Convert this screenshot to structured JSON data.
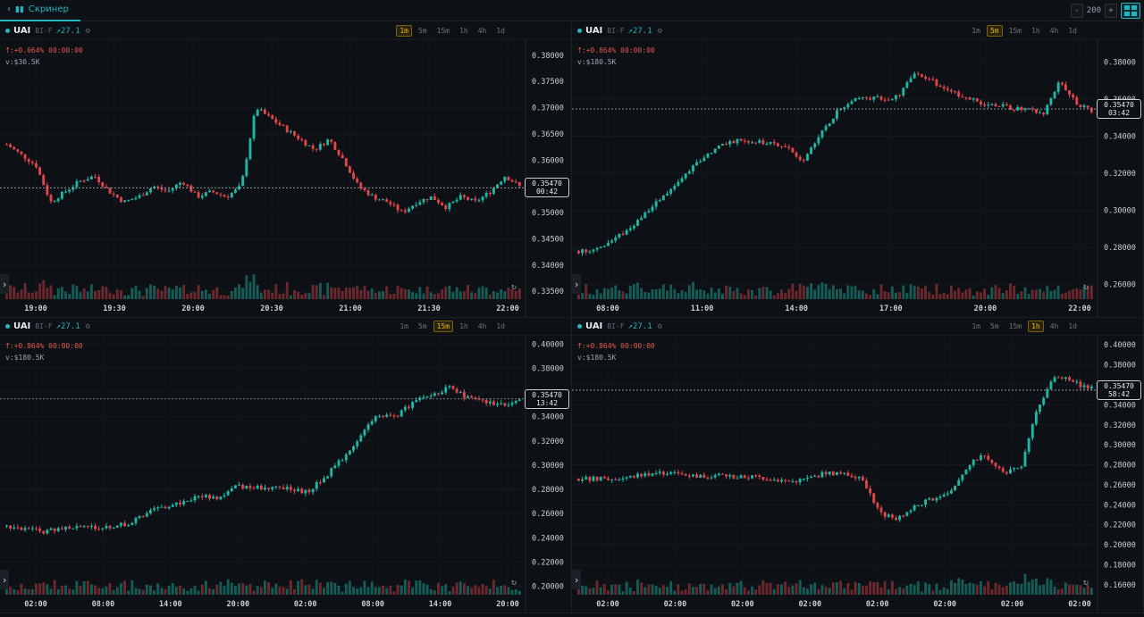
{
  "topbar": {
    "back_label": "Скринер",
    "zoom_minus": "-",
    "zoom_value": "200",
    "zoom_plus": "+"
  },
  "colors": {
    "up": "#1fb6a6",
    "down": "#e0454a",
    "accent": "#1fb6c1",
    "bg": "#0d1115"
  },
  "panels": [
    {
      "symbol": "UAI",
      "exchange": "BI-F",
      "change": "↗27.1",
      "timeframes": [
        "1m",
        "5m",
        "15m",
        "1h",
        "4h",
        "1d"
      ],
      "active_tf": "1m",
      "funding": "f:+0.064% 00:00:00",
      "volume": "v:$30.5K",
      "price": "0.35470",
      "countdown": "00:42",
      "y_ticks": [
        "0.38000",
        "0.37500",
        "0.37000",
        "0.36500",
        "0.36000",
        "0.35500",
        "0.35000",
        "0.34500",
        "0.34000",
        "0.33500"
      ],
      "y_range": [
        0.3335,
        0.3815
      ],
      "x_ticks": [
        "19:00",
        "19:30",
        "20:00",
        "20:30",
        "21:00",
        "21:30",
        "22:00"
      ],
      "path": [
        0.363,
        0.361,
        0.359,
        0.352,
        0.354,
        0.356,
        0.357,
        0.354,
        0.352,
        0.353,
        0.355,
        0.354,
        0.356,
        0.353,
        0.354,
        0.353,
        0.355,
        0.37,
        0.368,
        0.366,
        0.364,
        0.362,
        0.364,
        0.36,
        0.355,
        0.353,
        0.352,
        0.35,
        0.352,
        0.353,
        0.351,
        0.353,
        0.352,
        0.354,
        0.357,
        0.355
      ]
    },
    {
      "symbol": "UAI",
      "exchange": "BI-F",
      "change": "↗27.1",
      "timeframes": [
        "1m",
        "5m",
        "15m",
        "1h",
        "4h",
        "1d"
      ],
      "active_tf": "5m",
      "funding": "f:+0.864% 00:00:00",
      "volume": "v:$180.5K",
      "price": "0.35470",
      "countdown": "03:42",
      "y_ticks": [
        "0.38000",
        "0.36000",
        "0.34000",
        "0.32000",
        "0.30000",
        "0.28000",
        "0.26000"
      ],
      "y_range": [
        0.252,
        0.388
      ],
      "x_ticks": [
        "08:00",
        "11:00",
        "14:00",
        "17:00",
        "20:00",
        "22:00"
      ],
      "path": [
        0.278,
        0.279,
        0.283,
        0.289,
        0.297,
        0.305,
        0.313,
        0.322,
        0.33,
        0.336,
        0.338,
        0.337,
        0.336,
        0.334,
        0.326,
        0.34,
        0.352,
        0.36,
        0.361,
        0.36,
        0.362,
        0.375,
        0.37,
        0.364,
        0.362,
        0.358,
        0.357,
        0.355,
        0.354,
        0.352,
        0.37,
        0.358,
        0.354
      ]
    },
    {
      "symbol": "UAI",
      "exchange": "BI-F",
      "change": "↗27.1",
      "timeframes": [
        "1m",
        "5m",
        "15m",
        "1h",
        "4h",
        "1d"
      ],
      "active_tf": "15m",
      "funding": "f:+0.864% 00:00:00",
      "volume": "v:$180.5K",
      "price": "0.35470",
      "countdown": "13:42",
      "y_ticks": [
        "0.40000",
        "0.38000",
        "0.36000",
        "0.34000",
        "0.32000",
        "0.30000",
        "0.28000",
        "0.26000",
        "0.24000",
        "0.22000",
        "0.20000"
      ],
      "y_range": [
        0.193,
        0.401
      ],
      "x_ticks": [
        "02:00",
        "08:00",
        "14:00",
        "20:00",
        "02:00",
        "08:00",
        "14:00",
        "20:00"
      ],
      "path": [
        0.25,
        0.247,
        0.245,
        0.248,
        0.249,
        0.248,
        0.25,
        0.252,
        0.262,
        0.266,
        0.27,
        0.275,
        0.273,
        0.283,
        0.281,
        0.282,
        0.28,
        0.278,
        0.29,
        0.306,
        0.324,
        0.342,
        0.34,
        0.352,
        0.358,
        0.364,
        0.356,
        0.352,
        0.35,
        0.354
      ]
    },
    {
      "symbol": "UAI",
      "exchange": "BI-F",
      "change": "↗27.1",
      "timeframes": [
        "1m",
        "5m",
        "15m",
        "1h",
        "4h",
        "1d"
      ],
      "active_tf": "1h",
      "funding": "f:+0.864% 00:00:00",
      "volume": "v:$180.5K",
      "price": "0.35470",
      "countdown": "58:42",
      "y_ticks": [
        "0.40000",
        "0.38000",
        "0.36000",
        "0.34000",
        "0.32000",
        "0.30000",
        "0.28000",
        "0.26000",
        "0.24000",
        "0.22000",
        "0.20000",
        "0.18000",
        "0.16000"
      ],
      "y_range": [
        0.15,
        0.402
      ],
      "x_ticks": [
        "02:00",
        "02:00",
        "02:00",
        "02:00",
        "02:00",
        "02:00",
        "02:00",
        "02:00"
      ],
      "path": [
        0.266,
        0.266,
        0.265,
        0.268,
        0.271,
        0.272,
        0.27,
        0.268,
        0.27,
        0.267,
        0.268,
        0.265,
        0.263,
        0.266,
        0.272,
        0.27,
        0.268,
        0.232,
        0.226,
        0.238,
        0.246,
        0.252,
        0.28,
        0.29,
        0.272,
        0.276,
        0.34,
        0.37,
        0.362,
        0.356
      ]
    }
  ]
}
